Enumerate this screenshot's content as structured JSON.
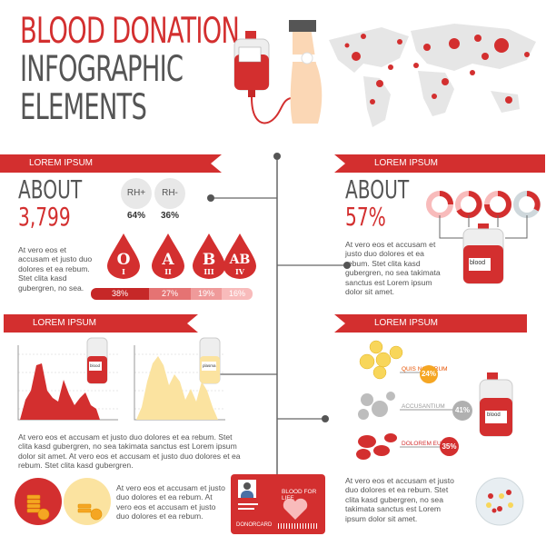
{
  "title": {
    "line1": "BLOOD DONATION",
    "line2": "INFOGRAPHIC",
    "line3": "ELEMENTS"
  },
  "ribbons": {
    "r1": "LOREM IPSUM",
    "r2": "LOREM IPSUM",
    "r3": "LOREM IPSUM",
    "r4": "LOREM IPSUM"
  },
  "stat1": {
    "about": "ABOUT",
    "value": "3,799",
    "text": [
      "At vero eos et",
      "accusam et justo duo",
      "dolores et ea rebum.",
      "Stet clita kasd",
      "gubergren, no sea."
    ]
  },
  "rh": {
    "pos_label": "RH+",
    "pos_pct": "64%",
    "neg_label": "RH-",
    "neg_pct": "36%"
  },
  "blood_types": [
    {
      "glyph": "O",
      "roman": "I",
      "pct": "38%"
    },
    {
      "glyph": "A",
      "roman": "II",
      "pct": "27%"
    },
    {
      "glyph": "B",
      "roman": "III",
      "pct": "19%"
    },
    {
      "glyph": "AB",
      "roman": "IV",
      "pct": "16%"
    }
  ],
  "stat2": {
    "about": "ABOUT",
    "value": "57%",
    "text": [
      "At vero eos et accusam et",
      "justo duo dolores et ea",
      "rebum. Stet clita kasd",
      "gubergren, no sea takimata",
      "sanctus est Lorem ipsum",
      "dolor sit amet."
    ]
  },
  "bag_labels": {
    "main": "blood",
    "left_chart": "blood",
    "right_chart": "plasma",
    "right_bag": "blood",
    "bottom_bag": "blood"
  },
  "charts_text": [
    "At vero eos et accusam et justo duo dolores et ea rebum. Stet",
    "clita kasd gubergren, no sea takimata sanctus est Lorem ipsum",
    "dolor sit amet. At vero eos et accusam et justo duo dolores et ea",
    "rebum. Stet clita kasd gubergren."
  ],
  "coins_text": [
    "At vero eos et accusam et justo",
    "duo dolores et ea rebum. At",
    "vero eos et accusam et justo",
    "duo dolores et ea rebum."
  ],
  "cells": [
    {
      "label": "QUIS NOSTRUM",
      "pct": "24%",
      "color": "#f5a623"
    },
    {
      "label": "ACCUSANTIUM",
      "pct": "41%",
      "color": "#b0b0b0"
    },
    {
      "label": "DOLOREM EUM",
      "pct": "35%",
      "color": "#d32f2f"
    }
  ],
  "cells_text": [
    "At vero eos et accusam et justo",
    "duo dolores et ea rebum. Stet",
    "clita kasd gubergren, no sea",
    "takimata sanctus est Lorem",
    "ipsum dolor sit amet."
  ],
  "card": {
    "slogan": "BLOOD FOR LIFE",
    "name": "DONORCARD"
  },
  "colors": {
    "red": "#d32f2f",
    "gray": "#555555",
    "light_red": "#ef9a9a",
    "yellow": "#fbe3a0"
  },
  "icons": [
    "blood-bag-icon",
    "arm-icon",
    "world-map-icon",
    "coin-icon",
    "petri-dish-icon",
    "heart-icon",
    "user-icon"
  ]
}
